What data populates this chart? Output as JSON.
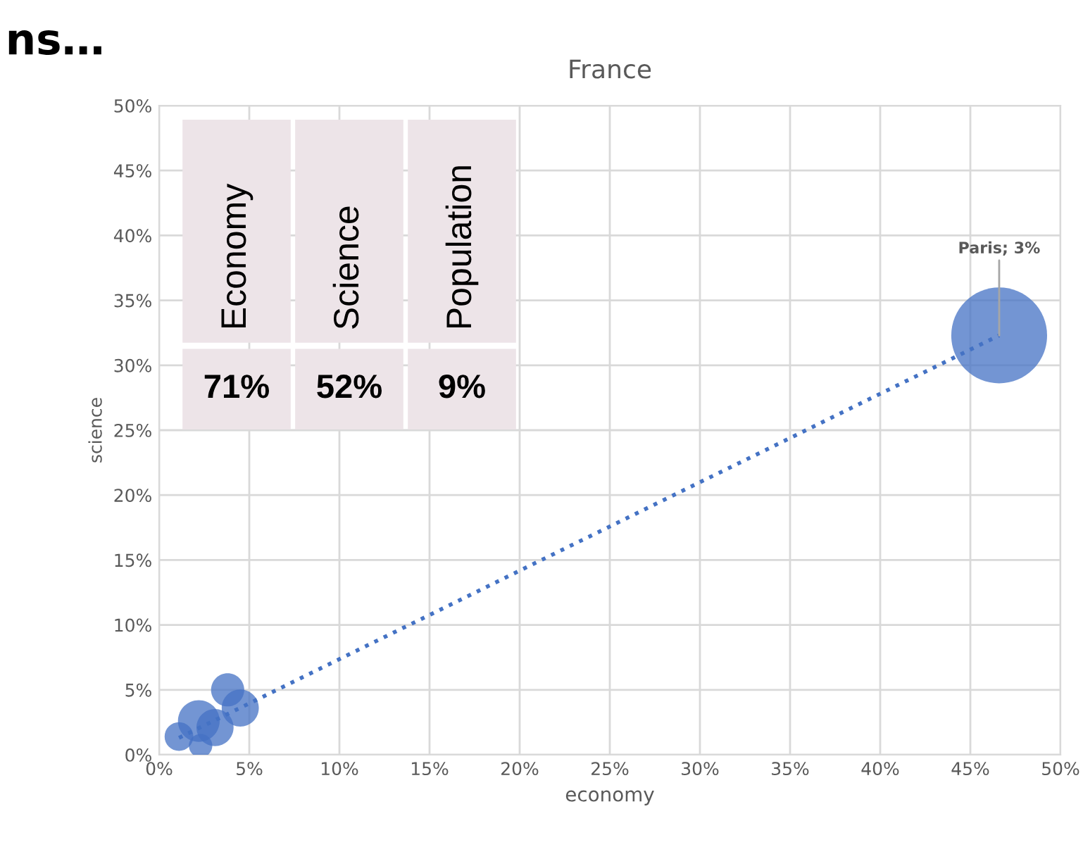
{
  "chart_data": [
    {
      "type": "bubble",
      "title": "France",
      "xlabel": "economy",
      "ylabel": "science",
      "series": [
        {
          "type": "bubble",
          "color": "#4472c4",
          "x": [
            46.6,
            3.8,
            4.5,
            2.2,
            1.1,
            3.1,
            2.3
          ],
          "values": [
            32.3,
            5.0,
            3.6,
            2.6,
            1.4,
            2.1,
            0.7
          ],
          "sizes": [
            1,
            0.12,
            0.15,
            0.19,
            0.09,
            0.15,
            0.06
          ]
        },
        {
          "type": "line",
          "color": "#4472c4",
          "line_style": "dotted",
          "x": [
            1.1,
            46.6
          ],
          "values": [
            1.3,
            32.3
          ]
        }
      ],
      "xlim": [
        0,
        50
      ],
      "ylim": [
        0,
        50
      ],
      "xticks": [
        {
          "value": 0,
          "label": "0%"
        },
        {
          "value": 5,
          "label": "5%"
        },
        {
          "value": 10,
          "label": "10%"
        },
        {
          "value": 15,
          "label": "15%"
        },
        {
          "value": 20,
          "label": "20%"
        },
        {
          "value": 25,
          "label": "25%"
        },
        {
          "value": 30,
          "label": "30%"
        },
        {
          "value": 35,
          "label": "35%"
        },
        {
          "value": 40,
          "label": "40%"
        },
        {
          "value": 45,
          "label": "45%"
        },
        {
          "value": 50,
          "label": "50%"
        }
      ],
      "yticks": [
        {
          "value": 0,
          "label": "0%"
        },
        {
          "value": 5,
          "label": "5%"
        },
        {
          "value": 10,
          "label": "10%"
        },
        {
          "value": 15,
          "label": "15%"
        },
        {
          "value": 20,
          "label": "20%"
        },
        {
          "value": 25,
          "label": "25%"
        },
        {
          "value": 30,
          "label": "30%"
        },
        {
          "value": 35,
          "label": "35%"
        },
        {
          "value": 40,
          "label": "40%"
        },
        {
          "value": 45,
          "label": "45%"
        },
        {
          "value": 50,
          "label": "50%"
        }
      ],
      "grid": true,
      "annotations": [
        {
          "text": "Paris; 3%",
          "x": 46.6,
          "y": 32.3
        },
        "ns…"
      ]
    },
    {
      "type": "other",
      "annotations": [
        "Economy",
        "Science",
        "Population",
        "71%",
        "52%",
        "9%"
      ]
    }
  ]
}
